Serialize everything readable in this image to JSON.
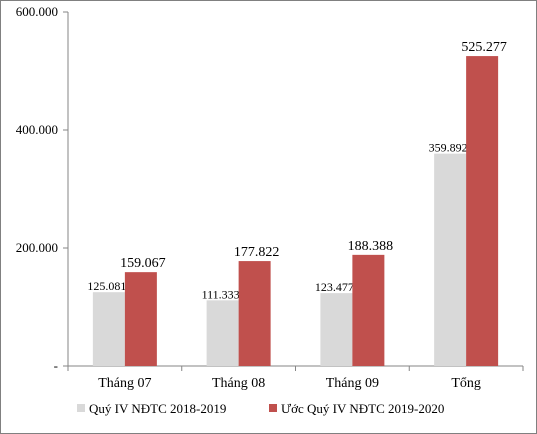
{
  "chart_data": {
    "type": "bar",
    "categories": [
      "Tháng 07",
      "Tháng 08",
      "Tháng 09",
      "Tổng"
    ],
    "series": [
      {
        "name": "Quý IV NĐTC 2018-2019",
        "values": [
          125081,
          111333,
          123477,
          359892
        ],
        "labels": [
          "125.081",
          "111.333",
          "123.477",
          "359.892"
        ],
        "color": "#d9d9d9"
      },
      {
        "name": "Ước Quý IV NĐTC 2019-2020",
        "values": [
          159067,
          177822,
          188388,
          525277
        ],
        "labels": [
          "159.067",
          "177.822",
          "188.388",
          "525.277"
        ],
        "color": "#c0504d"
      }
    ],
    "yticks": [
      {
        "value": 0,
        "label": "-"
      },
      {
        "value": 200000,
        "label": "200.000"
      },
      {
        "value": 400000,
        "label": "400.000"
      },
      {
        "value": 600000,
        "label": "600.000"
      }
    ],
    "ylim": [
      0,
      600000
    ],
    "grid": false,
    "legend_position": "bottom"
  }
}
